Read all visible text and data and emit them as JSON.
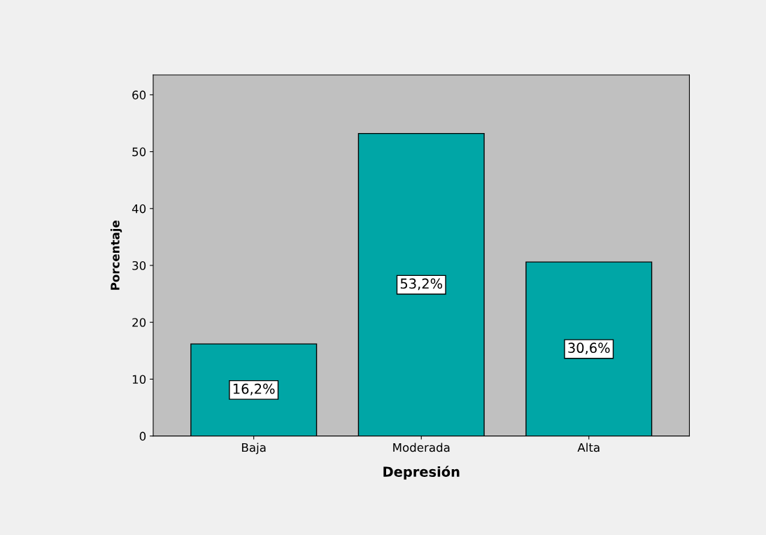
{
  "chart_data": {
    "type": "bar",
    "xlabel": "Depresión",
    "ylabel": "Porcentaje",
    "categories": [
      "Baja",
      "Moderada",
      "Alta"
    ],
    "values": [
      16.2,
      53.2,
      30.6
    ],
    "value_labels": [
      "16,2%",
      "53,2%",
      "30,6%"
    ],
    "color": "#00a6a6",
    "ylim": [
      0,
      63.5
    ],
    "yticks": [
      0,
      10,
      20,
      30,
      40,
      50,
      60
    ],
    "grid": false,
    "legend": false
  }
}
